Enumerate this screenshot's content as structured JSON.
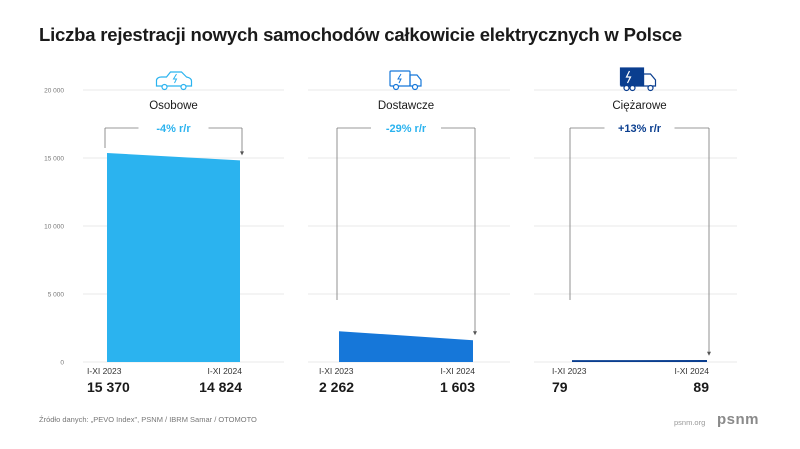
{
  "title": "Liczba rejestracji nowych samochodów całkowicie elektrycznych w Polsce",
  "footer": {
    "source": "Źródło danych: „PEVO Index\", PSNM / IBRM Samar / OTOMOTO",
    "url": "psnm.org",
    "logo": "psnm"
  },
  "colors": {
    "light_blue": "#2bb3ef",
    "mid_blue": "#1677d9",
    "dark_blue": "#0a3e8f",
    "grid": "#e2e2e2"
  },
  "chart_data": {
    "type": "area",
    "y_ticks": [
      "20 000",
      "15 000",
      "10 000",
      "5 000",
      "0"
    ],
    "ylim": [
      0,
      20000
    ],
    "grid": true,
    "panels": [
      {
        "title": "Osobowe",
        "icon": "car-electric-icon",
        "change": "-4% r/r",
        "change_color": "#2bb3ef",
        "fill_color": "#2bb3ef",
        "categories": [
          "I-XI 2023",
          "I-XI 2024"
        ],
        "values": [
          15370,
          14824
        ],
        "value_labels": [
          "15 370",
          "14 824"
        ]
      },
      {
        "title": "Dostawcze",
        "icon": "van-electric-icon",
        "change": "-29% r/r",
        "change_color": "#2bb3ef",
        "fill_color": "#1677d9",
        "categories": [
          "I-XI 2023",
          "I-XI 2024"
        ],
        "values": [
          2262,
          1603
        ],
        "value_labels": [
          "2 262",
          "1 603"
        ]
      },
      {
        "title": "Ciężarowe",
        "icon": "truck-electric-icon",
        "change": "+13% r/r",
        "change_color": "#0a3e8f",
        "fill_color": "#0a3e8f",
        "categories": [
          "I-XI 2023",
          "I-XI 2024"
        ],
        "values": [
          79,
          89
        ],
        "value_labels": [
          "79",
          "89"
        ]
      }
    ]
  }
}
